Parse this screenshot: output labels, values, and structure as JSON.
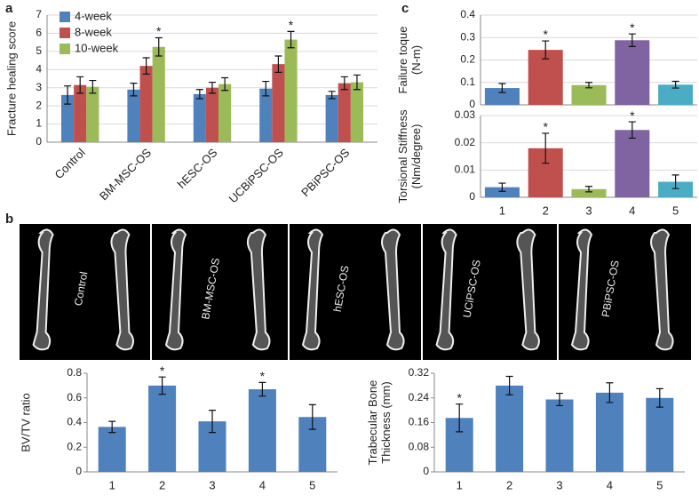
{
  "panel_labels": [
    "a",
    "b",
    "c"
  ],
  "images": {
    "labels": [
      "Control",
      "BM-MSC-OS",
      "hESC-OS",
      "UCiPSC-OS",
      "PBiPSC-OS"
    ]
  },
  "chart_data": [
    {
      "type": "bar",
      "ylabel": [
        "Fracture healing score"
      ],
      "categories": [
        "Control",
        "BM-MSC-OS",
        "hESC-OS",
        "UCBiPSC-OS",
        "PBiPSC-OS"
      ],
      "series": [
        {
          "name": "4-week",
          "color": "#4f81bd",
          "values": [
            2.6,
            2.9,
            2.65,
            2.95,
            2.6
          ],
          "errors": [
            0.5,
            0.35,
            0.25,
            0.4,
            0.2
          ]
        },
        {
          "name": "8-week",
          "color": "#c0504d",
          "values": [
            3.15,
            4.2,
            3.0,
            4.3,
            3.25
          ],
          "errors": [
            0.45,
            0.45,
            0.3,
            0.45,
            0.35
          ]
        },
        {
          "name": "10-week",
          "color": "#9bbb59",
          "values": [
            3.05,
            5.25,
            3.2,
            5.65,
            3.3
          ],
          "errors": [
            0.35,
            0.5,
            0.35,
            0.45,
            0.4
          ]
        }
      ],
      "annotations": [
        {
          "text": "*",
          "index": 1,
          "series": 2
        },
        {
          "text": "*",
          "index": 3,
          "series": 2
        }
      ],
      "ylim": [
        0,
        7
      ],
      "yticks": [
        0,
        1,
        2,
        3,
        4,
        5,
        6,
        7
      ],
      "grid": true,
      "legend": "upper left"
    },
    {
      "type": "bar",
      "ylabel": [
        "Failure toque",
        "(N-m)"
      ],
      "categories": [
        null,
        null,
        null,
        null,
        null
      ],
      "values": [
        0.075,
        0.245,
        0.088,
        0.288,
        0.09
      ],
      "errors": [
        0.02,
        0.04,
        0.012,
        0.028,
        0.015
      ],
      "colors": [
        "#4f81bd",
        "#c0504d",
        "#9bbb59",
        "#8064a2",
        "#4bacc6"
      ],
      "annotations": [
        {
          "text": "*",
          "index": 1
        },
        {
          "text": "*",
          "index": 3
        }
      ],
      "ylim": [
        0,
        0.4
      ],
      "yticks": [
        0,
        0.1,
        0.2,
        0.3,
        0.4
      ],
      "grid": true
    },
    {
      "type": "bar",
      "ylabel": [
        "Torsional Stiffness",
        "(Nm/degree)"
      ],
      "categories": [
        "1",
        "2",
        "3",
        "4",
        "5"
      ],
      "values": [
        0.0037,
        0.018,
        0.003,
        0.0247,
        0.0057
      ],
      "errors": [
        0.0015,
        0.0055,
        0.001,
        0.003,
        0.0025
      ],
      "colors": [
        "#4f81bd",
        "#c0504d",
        "#9bbb59",
        "#8064a2",
        "#4bacc6"
      ],
      "annotations": [
        {
          "text": "*",
          "index": 1
        },
        {
          "text": "*",
          "index": 3
        }
      ],
      "ylim": [
        0,
        0.03
      ],
      "yticks": [
        0,
        0.01,
        0.02,
        0.03
      ],
      "grid": true
    },
    {
      "type": "bar",
      "ylabel": [
        "BV/TV ratio"
      ],
      "categories": [
        "1",
        "2",
        "3",
        "4",
        "5"
      ],
      "values": [
        0.365,
        0.7,
        0.41,
        0.67,
        0.445
      ],
      "errors": [
        0.045,
        0.07,
        0.09,
        0.055,
        0.1
      ],
      "color": "#4f81bd",
      "annotations": [
        {
          "text": "*",
          "index": 1
        },
        {
          "text": "*",
          "index": 3
        }
      ],
      "ylim": [
        0,
        0.8
      ],
      "yticks": [
        0,
        0.2,
        0.4,
        0.6,
        0.8
      ],
      "grid": false
    },
    {
      "type": "bar",
      "ylabel": [
        "Trabecular Bone",
        "Thickness (mm)"
      ],
      "categories": [
        "1",
        "2",
        "3",
        "4",
        "5"
      ],
      "values": [
        0.175,
        0.28,
        0.235,
        0.257,
        0.24
      ],
      "errors": [
        0.045,
        0.03,
        0.02,
        0.032,
        0.03
      ],
      "color": "#4f81bd",
      "annotations": [
        {
          "text": "*",
          "index": 0
        }
      ],
      "ylim": [
        0,
        0.32
      ],
      "yticks": [
        0,
        0.08,
        0.16,
        0.24,
        0.32
      ],
      "grid": false
    }
  ]
}
